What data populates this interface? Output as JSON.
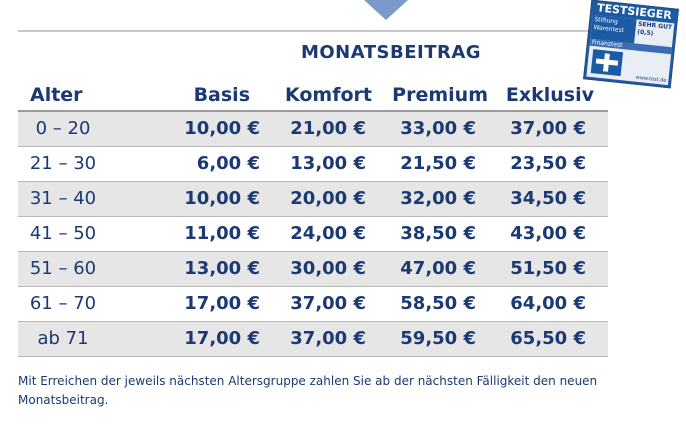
{
  "header": {
    "title": "MONATSBEITRAG"
  },
  "columns": {
    "age": "Alter",
    "tariffs": [
      "Basis",
      "Komfort",
      "Premium",
      "Exklusiv"
    ]
  },
  "rows": [
    {
      "age": "0 – 20",
      "values": [
        "10,00 €",
        "21,00 €",
        "33,00 €",
        "37,00 €"
      ]
    },
    {
      "age": "21 – 30",
      "values": [
        "6,00 €",
        "13,00 €",
        "21,50 €",
        "23,50 €"
      ]
    },
    {
      "age": "31 – 40",
      "values": [
        "10,00 €",
        "20,00 €",
        "32,00 €",
        "34,50 €"
      ]
    },
    {
      "age": "41 – 50",
      "values": [
        "11,00 €",
        "24,00 €",
        "38,50 €",
        "43,00 €"
      ]
    },
    {
      "age": "51 – 60",
      "values": [
        "13,00 €",
        "30,00 €",
        "47,00 €",
        "51,50 €"
      ]
    },
    {
      "age": "61 – 70",
      "values": [
        "17,00 €",
        "37,00 €",
        "58,50 €",
        "64,00 €"
      ]
    },
    {
      "age": "ab 71",
      "values": [
        "17,00 €",
        "37,00 €",
        "59,50 €",
        "65,50 €"
      ]
    }
  ],
  "footnote": "Mit Erreichen der jeweils nächsten Altersgruppe zahlen Sie ab der nächsten Fälligkeit den neuen Monatsbeitrag.",
  "badge": {
    "title": "TESTSIEGER",
    "org": "Stiftung Warentest",
    "grade": "SEHR GUT (0,5)",
    "magazine": "Finanztest",
    "url": "www.test.de"
  },
  "colors": {
    "text": "#1b3a73",
    "shade": "#e6e6e6",
    "badge": "#1d5aa4"
  }
}
